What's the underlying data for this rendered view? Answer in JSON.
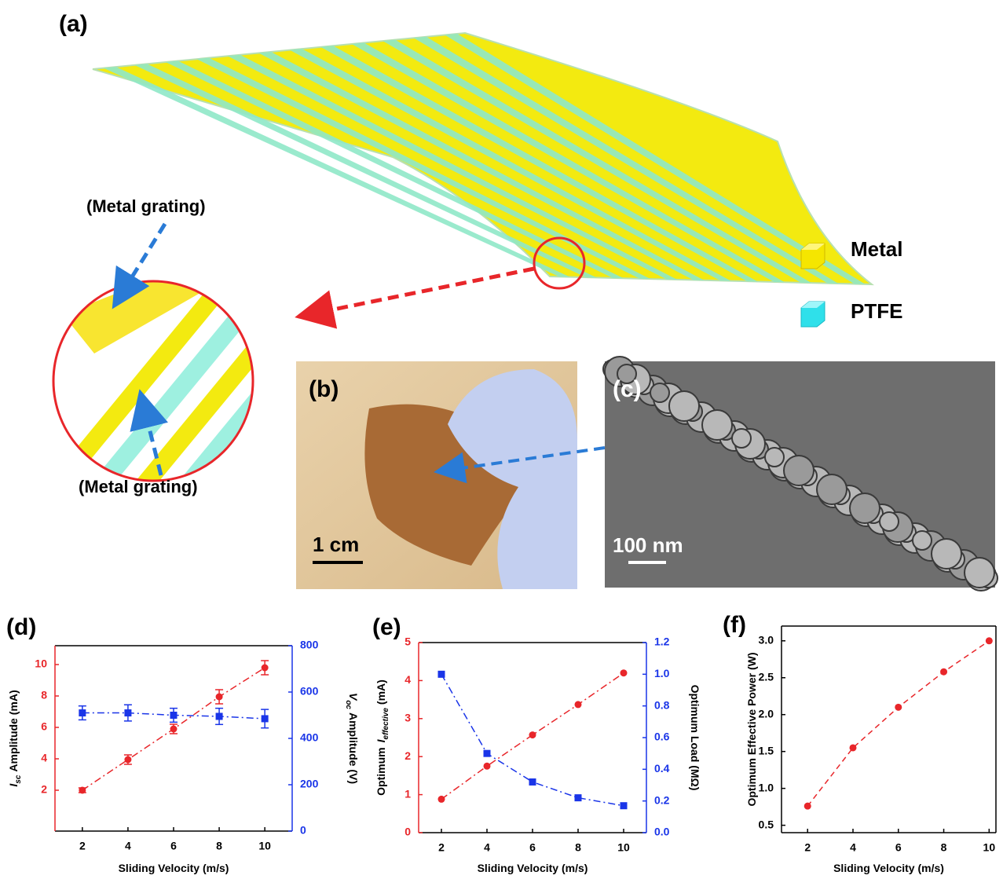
{
  "figure": {
    "panel_a": {
      "label": "(a)",
      "callouts": [
        "(Metal grating)",
        "(Metal grating)"
      ],
      "legend": [
        "Metal",
        "PTFE"
      ]
    },
    "panel_b": {
      "label": "(b)",
      "scale_bar": "1 cm"
    },
    "panel_c": {
      "label": "(c)",
      "scale_bar": "100 nm"
    }
  },
  "chart_data": [
    {
      "type": "line",
      "title": "(d)",
      "xlabel": "Sliding Velocity (m/s)",
      "ylabel": {
        "symbol": "I",
        "subscript": "sc",
        "text": "Amplitude (mA)"
      },
      "y2label": {
        "symbol": "V",
        "subscript": "oc",
        "text": "Amplitude (V)"
      },
      "x": [
        2,
        4,
        6,
        8,
        10
      ],
      "xlim": [
        0.8,
        11.2
      ],
      "xticks": [
        2,
        4,
        6,
        8,
        10
      ],
      "ylim": [
        -0.6,
        11.2
      ],
      "yticks": [
        2,
        4,
        6,
        8,
        10
      ],
      "y2lim": [
        0,
        800
      ],
      "y2ticks": [
        0,
        200,
        400,
        600,
        800
      ],
      "color_axes": true,
      "series": [
        {
          "color": "#e8262a",
          "marker": "circle",
          "linestyle": "dashdot",
          "values": [
            2.0,
            3.95,
            5.9,
            7.95,
            9.8
          ],
          "errors": [
            0.15,
            0.3,
            0.3,
            0.45,
            0.45
          ]
        },
        {
          "color": "#1a35e8",
          "marker": "square",
          "linestyle": "dashdot",
          "axis": "y2",
          "values": [
            510,
            510,
            500,
            495,
            485
          ],
          "errors": [
            30,
            35,
            30,
            35,
            40
          ]
        }
      ]
    },
    {
      "type": "line",
      "title": "(e)",
      "xlabel": "Sliding Velocity (m/s)",
      "ylabel": {
        "prefix": "Optimum",
        "symbol": "I",
        "subscript": "effective",
        "text": "(mA)"
      },
      "y2label": "Optimum Load (MΩ)",
      "x": [
        2,
        4,
        6,
        8,
        10
      ],
      "xlim": [
        1,
        11
      ],
      "xticks": [
        2,
        4,
        6,
        8,
        10
      ],
      "ylim": [
        0,
        5
      ],
      "yticks": [
        0,
        1,
        2,
        3,
        4,
        5
      ],
      "y2lim": [
        0,
        1.2
      ],
      "y2ticks": [
        {
          "value": 0,
          "label": "0.0"
        },
        0.2,
        0.4,
        0.6,
        0.8,
        {
          "value": 1,
          "label": "1.0"
        },
        1.2
      ],
      "color_axes": true,
      "series": [
        {
          "color": "#e8262a",
          "marker": "circle",
          "linestyle": "dashdot",
          "values": [
            0.88,
            1.75,
            2.57,
            3.37,
            4.2
          ]
        },
        {
          "color": "#1a35e8",
          "marker": "square",
          "linestyle": "dashdot",
          "axis": "y2",
          "values": [
            1.0,
            0.5,
            0.32,
            0.22,
            0.17
          ]
        }
      ]
    },
    {
      "type": "line",
      "title": "(f)",
      "xlabel": "Sliding Velocity (m/s)",
      "ylabel": "Optimum Effective Power (W)",
      "x": [
        2,
        4,
        6,
        8,
        10
      ],
      "xlim": [
        0.85,
        10.3
      ],
      "xticks": [
        2,
        4,
        6,
        8,
        10
      ],
      "ylim": [
        0.4,
        3.2
      ],
      "yticks": [
        0.5,
        {
          "value": 1,
          "label": "1.0"
        },
        1.5,
        {
          "value": 2,
          "label": "2.0"
        },
        2.5,
        {
          "value": 3,
          "label": "3.0"
        }
      ],
      "color_axes": false,
      "series": [
        {
          "color": "#e8262a",
          "marker": "circle",
          "linestyle": "dashed",
          "values": [
            0.76,
            1.55,
            2.1,
            2.58,
            3.0
          ]
        }
      ]
    }
  ]
}
